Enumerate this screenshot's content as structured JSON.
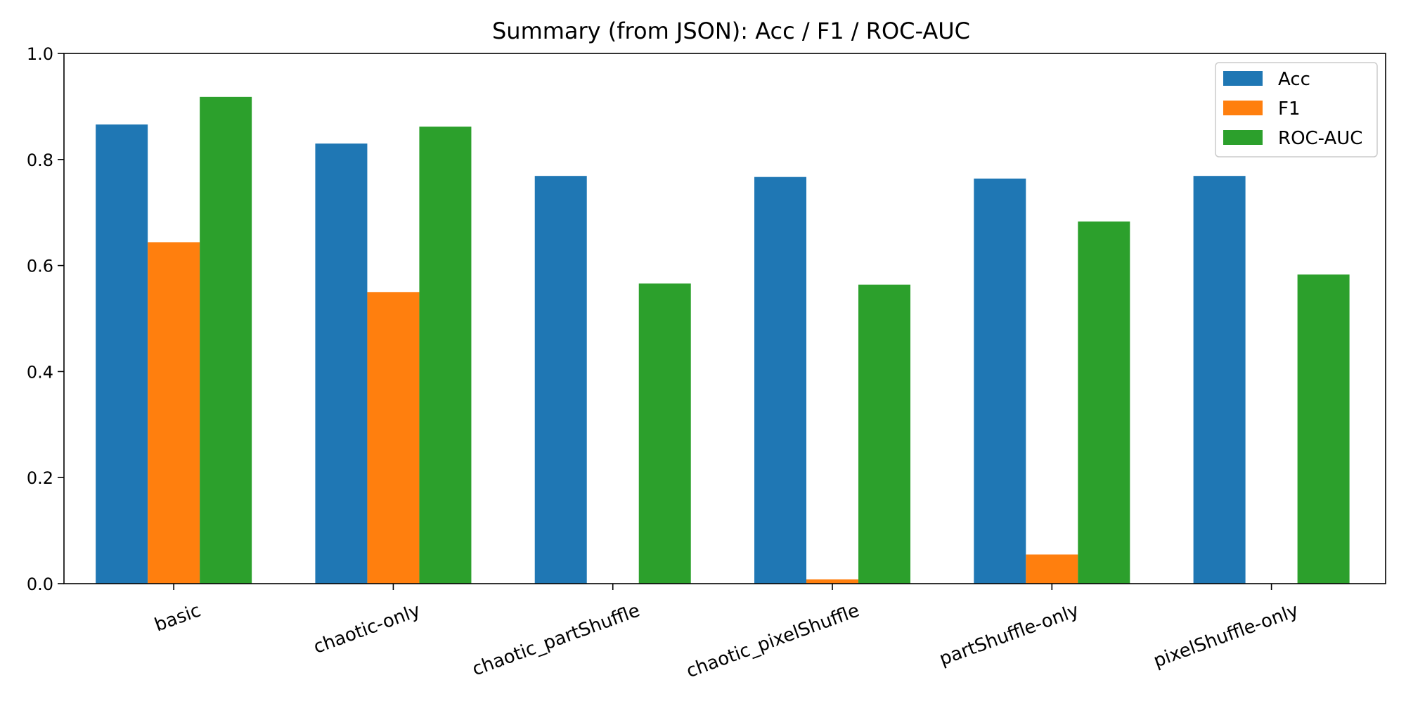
{
  "chart_data": {
    "type": "bar",
    "title": "Summary (from JSON): Acc / F1 / ROC-AUC",
    "xlabel": "",
    "ylabel": "",
    "ylim": [
      0,
      1.0
    ],
    "yticks": [
      "0.0",
      "0.2",
      "0.4",
      "0.6",
      "0.8",
      "1.0"
    ],
    "ytick_values": [
      0,
      0.2,
      0.4,
      0.6,
      0.8,
      1.0
    ],
    "categories": [
      "basic",
      "chaotic-only",
      "chaotic_partShuffle",
      "chaotic_pixelShuffle",
      "partShuffle-only",
      "pixelShuffle-only"
    ],
    "series": [
      {
        "name": "Acc",
        "color": "#1f77b4",
        "values": [
          0.866,
          0.83,
          0.769,
          0.767,
          0.764,
          0.769
        ]
      },
      {
        "name": "F1",
        "color": "#ff7f0e",
        "values": [
          0.644,
          0.55,
          0.0,
          0.008,
          0.055,
          0.0
        ]
      },
      {
        "name": "ROC-AUC",
        "color": "#2ca02c",
        "values": [
          0.918,
          0.862,
          0.566,
          0.564,
          0.683,
          0.583
        ]
      }
    ],
    "grid": false,
    "legend_position": "top-right"
  }
}
